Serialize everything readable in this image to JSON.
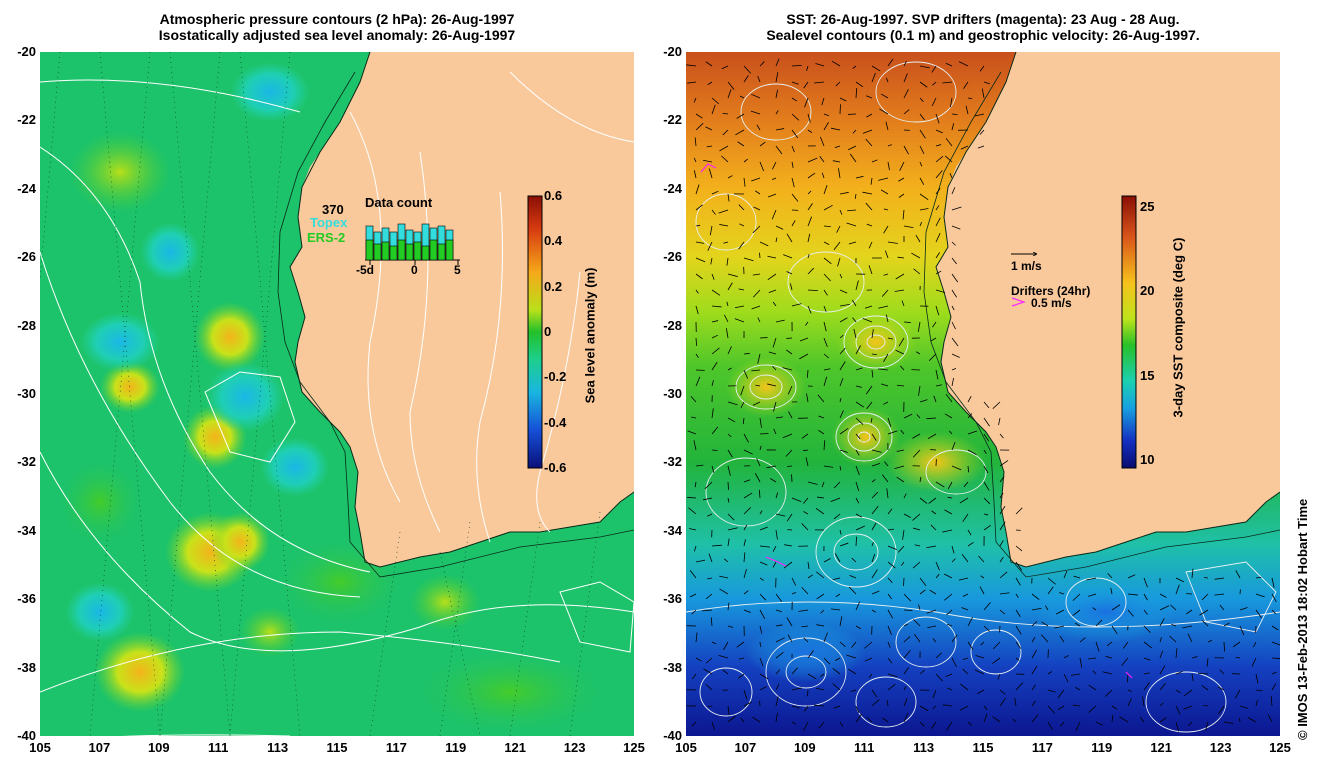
{
  "left_panel": {
    "title_line1": "Atmospheric pressure contours (2 hPa): 26-Aug-1997",
    "title_line2": "Isostatically adjusted sea level anomaly: 26-Aug-1997",
    "colorbar": {
      "label": "Sea level anomaly (m)",
      "ticks": [
        "0.6",
        "0.4",
        "0.2",
        "0",
        "-0.2",
        "-0.4",
        "-0.6"
      ]
    },
    "inset": {
      "count": "370",
      "topex_label": "Topex",
      "ers_label": "ERS-2",
      "title": "Data count",
      "x_ticks": [
        "-5d",
        "0",
        "5"
      ],
      "topex_values": [
        0.85,
        0.7,
        0.8,
        0.7,
        0.9,
        0.75,
        0.7,
        0.9,
        0.8,
        0.85,
        0.75
      ],
      "ers_values": [
        0.5,
        0.4,
        0.45,
        0.35,
        0.5,
        0.4,
        0.45,
        0.35,
        0.5,
        0.4,
        0.5
      ],
      "topex_color": "#33dddd",
      "ers_color": "#22cc22"
    }
  },
  "right_panel": {
    "title_line1": "SST: 26-Aug-1997. SVP drifters (magenta): 23 Aug - 28 Aug.",
    "title_line2": "Sealevel contours (0.1 m) and geostrophic velocity: 26-Aug-1997.",
    "colorbar": {
      "label": "3-day SST composite (deg C)",
      "ticks": [
        "25",
        "20",
        "15",
        "10"
      ]
    },
    "legend": {
      "velocity_scale": "1 m/s",
      "drifter_title": "Drifters (24hr)",
      "drifter_scale": "0.5 m/s",
      "drifter_color": "#ff22ff"
    }
  },
  "axes": {
    "y_ticks": [
      "-20",
      "-22",
      "-24",
      "-26",
      "-28",
      "-30",
      "-32",
      "-34",
      "-36",
      "-38",
      "-40"
    ],
    "x_ticks": [
      "105",
      "107",
      "109",
      "111",
      "113",
      "115",
      "117",
      "119",
      "121",
      "123",
      "125"
    ],
    "lat_range": [
      -40,
      -20
    ],
    "lon_range": [
      105,
      125
    ]
  },
  "colors": {
    "land": "#f9c99c",
    "ocean_sla": "#1dc36a",
    "warm_sst": "#d2661a"
  },
  "credit": "© IMOS 13-Feb-2013 18:02 Hobart Time"
}
